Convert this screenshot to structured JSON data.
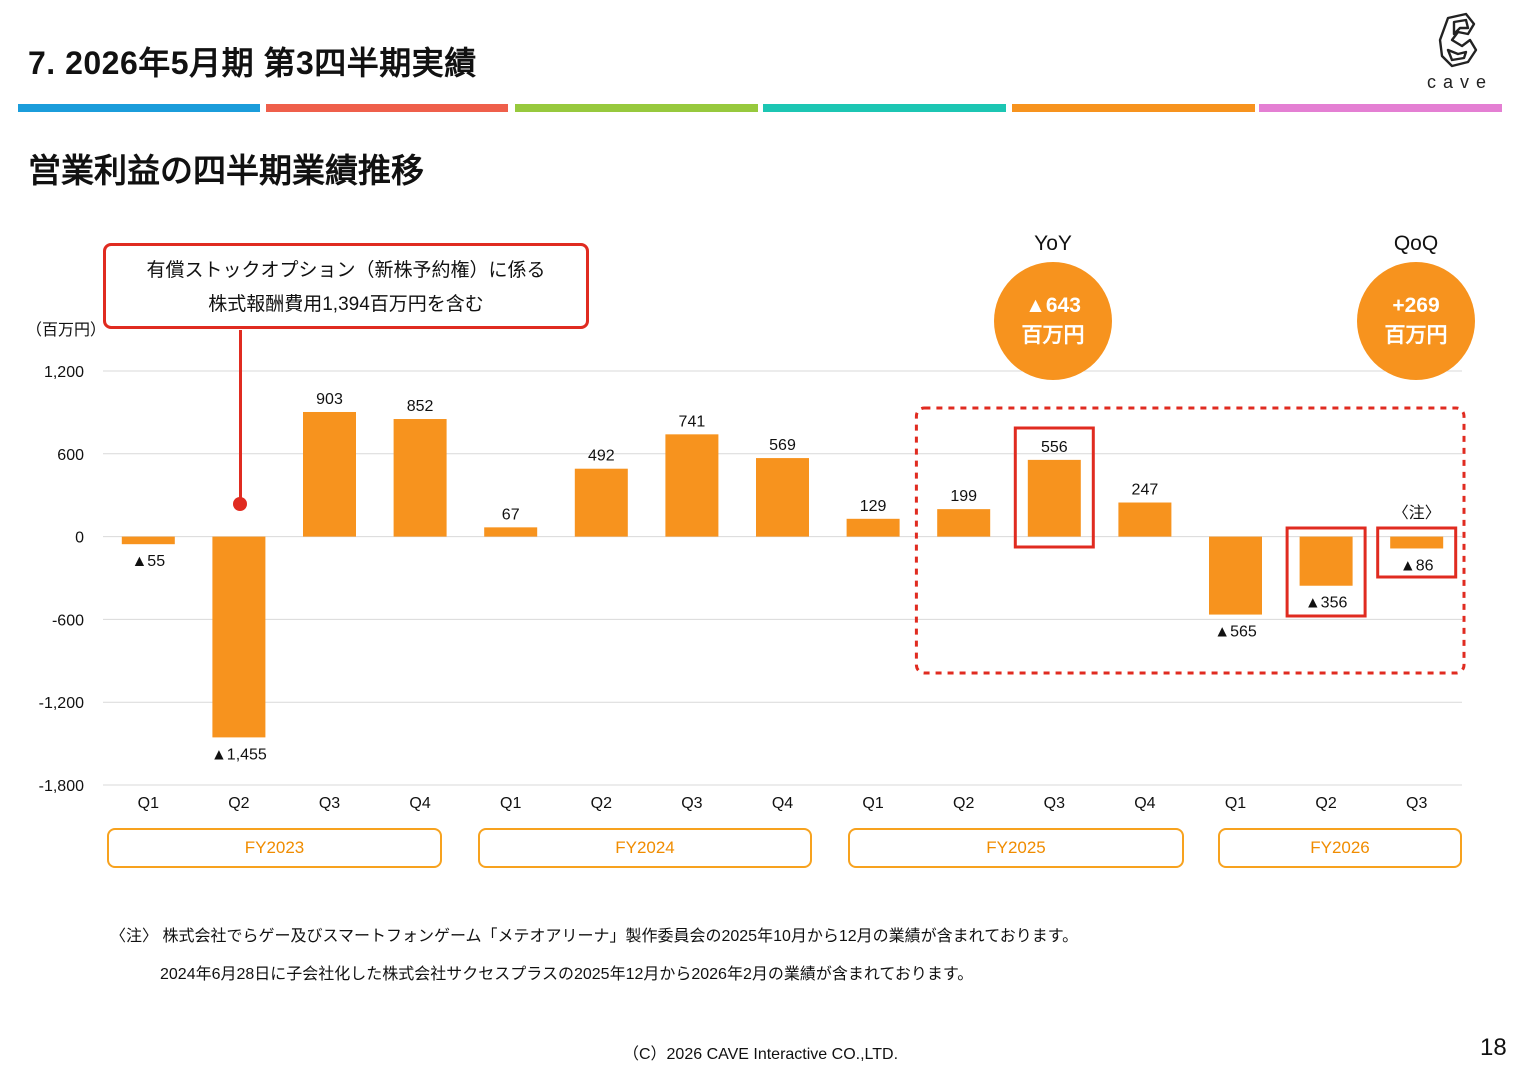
{
  "header": {
    "title": "7.  2026年5月期  第3四半期実績",
    "logo_text": "cave",
    "color_bars": [
      "#1b9ddb",
      "#ef5f4b",
      "#97c93d",
      "#1cc6b3",
      "#f7931e",
      "#e47fd3"
    ]
  },
  "section_title": "営業利益の四半期業績推移",
  "callout": {
    "line1": "有償ストックオプション（新株予約権）に係る",
    "line2": "株式報酬費用1,394百万円を含む"
  },
  "kpi": {
    "yoy_title": "YoY",
    "yoy_value": "▲643",
    "yoy_unit": "百万円",
    "qoq_title": "QoQ",
    "qoq_value": "+269",
    "qoq_unit": "百万円"
  },
  "fiscal_years": [
    "FY2023",
    "FY2024",
    "FY2025",
    "FY2026"
  ],
  "chart_note_mark": "〈注〉",
  "notes": {
    "line1": "〈注〉 株式会社でらゲー及びスマートフォンゲーム「メテオアリーナ」製作委員会の2025年10月から12月の業績が含まれております。",
    "line2": "2024年6月28日に子会社化した株式会社サクセスプラスの2025年12月から2026年2月の業績が含まれております。"
  },
  "footer": "（C）2026 CAVE Interactive CO.,LTD.",
  "page_number": "18",
  "colors": {
    "bar": "#f7931e",
    "highlight": "#e02b20",
    "kpi": "#f7931e"
  },
  "chart_data": {
    "type": "bar",
    "ylabel": "（百万円）",
    "ylim": [
      -1800,
      1200
    ],
    "yticks": [
      1200,
      600,
      0,
      -600,
      -1200,
      -1800
    ],
    "ytick_labels": [
      "1,200",
      "600",
      "0",
      "-600",
      "-1,200",
      "-1,800"
    ],
    "grid": true,
    "categories": [
      "Q1",
      "Q2",
      "Q3",
      "Q4",
      "Q1",
      "Q2",
      "Q3",
      "Q4",
      "Q1",
      "Q2",
      "Q3",
      "Q4",
      "Q1",
      "Q2",
      "Q3"
    ],
    "groups": [
      "FY2023",
      "FY2023",
      "FY2023",
      "FY2023",
      "FY2024",
      "FY2024",
      "FY2024",
      "FY2024",
      "FY2025",
      "FY2025",
      "FY2025",
      "FY2025",
      "FY2026",
      "FY2026",
      "FY2026"
    ],
    "values": [
      -55,
      -1455,
      903,
      852,
      67,
      492,
      741,
      569,
      129,
      199,
      556,
      247,
      -565,
      -356,
      -86
    ],
    "data_labels": [
      "▲55",
      "▲1,455",
      "903",
      "852",
      "67",
      "492",
      "741",
      "569",
      "129",
      "199",
      "556",
      "247",
      "▲565",
      "▲356",
      "▲86"
    ]
  }
}
